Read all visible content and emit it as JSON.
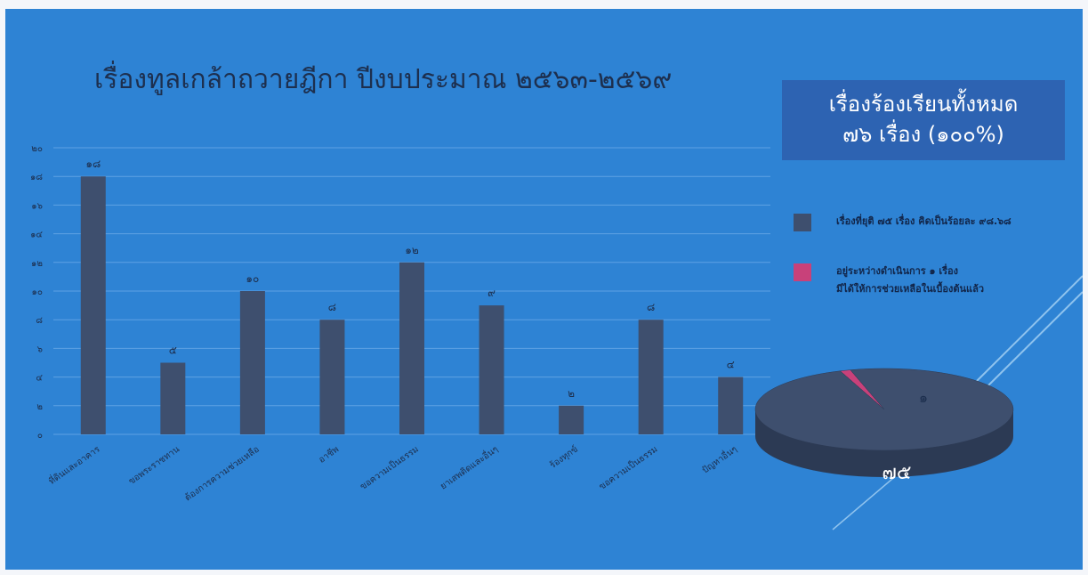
{
  "chart_data": [
    {
      "type": "bar",
      "title": "เรื่องทูลเกล้าถวายฎีกา ปีงบประมาณ ๒๕๖๓-๒๕๖๙",
      "categories": [
        "ที่ดินและอาคาร",
        "ขอพระราชทาน",
        "ต้องการความช่วยเหลือ",
        "อาชีพ",
        "ขอความเป็นธรรม",
        "ยาเสพติดและอื่นๆ",
        "ร้องทุกข์",
        "ขอความเป็นธรรม",
        "ปัญหาอื่นๆ"
      ],
      "values": [
        18,
        5,
        10,
        8,
        12,
        9,
        2,
        8,
        4
      ],
      "value_labels": [
        "๑๘",
        "๕",
        "๑๐",
        "๘",
        "๑๒",
        "๙",
        "๒",
        "๘",
        "๔"
      ],
      "y_ticks": [
        "๐",
        "๒",
        "๔",
        "๖",
        "๘",
        "๑๐",
        "๑๒",
        "๑๔",
        "๑๖",
        "๑๘",
        "๒๐"
      ],
      "ylim": [
        0,
        20
      ],
      "grid": true,
      "bar_color": "#3e4f6e"
    },
    {
      "type": "pie",
      "summary_box": {
        "line1": "เรื่องร้องเรียนทั้งหมด",
        "line2": "๗๖ เรื่อง (๑๐๐%)"
      },
      "slices": [
        {
          "label": "เรื่องที่ยุติ ๗๕ เรื่อง คิดเป็นร้อยละ ๙๘.๖๘",
          "value": 75,
          "value_label": "๗๕",
          "color": "#3e4f6e"
        },
        {
          "label": "อยู่ระหว่างดำเนินการ ๑ เรื่อง",
          "label_line2": "มีได้ให้การช่วยเหลือในเบื้องต้นแล้ว",
          "value": 1,
          "value_label": "๑",
          "color": "#c8417a"
        }
      ],
      "legend": "right"
    }
  ]
}
